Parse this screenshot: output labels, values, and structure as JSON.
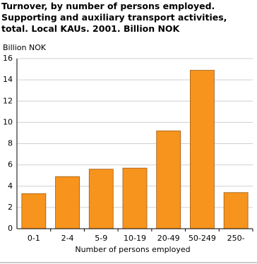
{
  "chart_data": {
    "type": "bar",
    "title": "Turnover, by number of persons employed. Supporting and auxiliary transport activities, total. Local KAUs. 2001. Billion NOK",
    "y_label": "Billion NOK",
    "x_label": "Number of persons employed",
    "categories": [
      "0-1",
      "2-4",
      "5-9",
      "10-19",
      "20-49",
      "50-249",
      "250-"
    ],
    "values": [
      3.3,
      4.9,
      5.6,
      5.7,
      9.2,
      14.9,
      3.4
    ],
    "color": "#f7941d",
    "ylim": [
      0,
      16
    ],
    "yticks": [
      0,
      2,
      4,
      6,
      8,
      10,
      12,
      14,
      16
    ],
    "grid": true
  }
}
